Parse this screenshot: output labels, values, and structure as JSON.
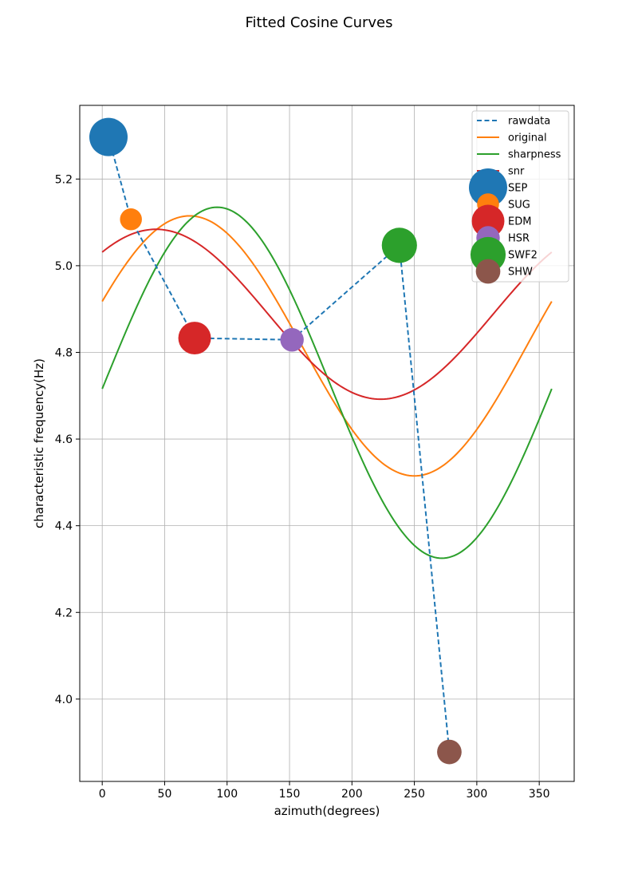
{
  "chart_data": {
    "type": "line",
    "title": "Fitted Cosine Curves",
    "xlabel": "azimuth(degrees)",
    "ylabel": "characteristic frequency(Hz)",
    "xlim": [
      -18,
      378
    ],
    "ylim": [
      3.81,
      5.37
    ],
    "xticks": [
      0,
      50,
      100,
      150,
      200,
      250,
      300,
      350
    ],
    "yticks": [
      4.0,
      4.2,
      4.4,
      4.6,
      4.8,
      5.0,
      5.2
    ],
    "ytick_labels": [
      "4.0",
      "4.2",
      "4.4",
      "4.6",
      "4.8",
      "5.0",
      "5.2"
    ],
    "grid": true,
    "legend_position": "top-right",
    "rawdata": {
      "name": "rawdata",
      "color": "#1f77b4",
      "style": "dashed",
      "x": [
        5,
        23,
        74,
        152,
        238,
        278
      ],
      "y": [
        5.297,
        5.107,
        4.833,
        4.829,
        5.047,
        3.878
      ]
    },
    "series": [
      {
        "name": "original",
        "color": "#ff7f0e",
        "offset": 4.815,
        "amplitude": 0.3,
        "phase": 70
      },
      {
        "name": "sharpness",
        "color": "#2ca02c",
        "offset": 4.73,
        "amplitude": 0.405,
        "phase": 92
      },
      {
        "name": "snr",
        "color": "#d62728",
        "offset": 4.888,
        "amplitude": 0.196,
        "phase": 43
      }
    ],
    "stations": [
      {
        "name": "SEP",
        "x": 5,
        "y": 5.297,
        "color": "#1f77b4",
        "weight": 1.0
      },
      {
        "name": "SUG",
        "x": 23,
        "y": 5.107,
        "color": "#ff7f0e",
        "weight": 0.36
      },
      {
        "name": "EDM",
        "x": 74,
        "y": 4.833,
        "color": "#d62728",
        "weight": 0.78
      },
      {
        "name": "HSR",
        "x": 152,
        "y": 4.829,
        "color": "#9467bd",
        "weight": 0.42
      },
      {
        "name": "SWF2",
        "x": 238,
        "y": 5.047,
        "color": "#2ca02c",
        "weight": 0.88
      },
      {
        "name": "SHW",
        "x": 278,
        "y": 3.878,
        "color": "#8c564b",
        "weight": 0.46
      }
    ]
  }
}
